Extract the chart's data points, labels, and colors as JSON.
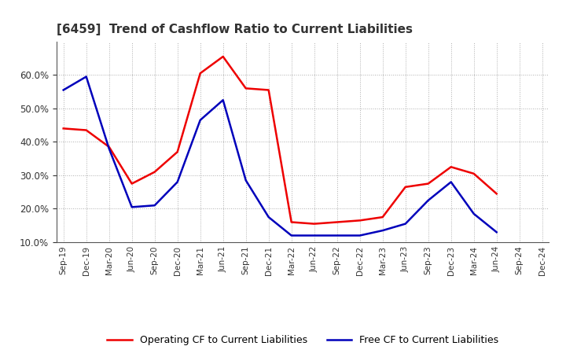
{
  "title": "[6459]  Trend of Cashflow Ratio to Current Liabilities",
  "x_labels": [
    "Sep-19",
    "Dec-19",
    "Mar-20",
    "Jun-20",
    "Sep-20",
    "Dec-20",
    "Mar-21",
    "Jun-21",
    "Sep-21",
    "Dec-21",
    "Mar-22",
    "Jun-22",
    "Sep-22",
    "Dec-22",
    "Mar-23",
    "Jun-23",
    "Sep-23",
    "Dec-23",
    "Mar-24",
    "Jun-24",
    "Sep-24",
    "Dec-24"
  ],
  "operating_cf": [
    0.44,
    0.435,
    0.385,
    0.275,
    0.31,
    0.37,
    0.605,
    0.655,
    0.56,
    0.555,
    0.16,
    0.155,
    0.16,
    0.165,
    0.175,
    0.265,
    0.275,
    0.325,
    0.305,
    0.245,
    null,
    null
  ],
  "free_cf": [
    0.555,
    0.595,
    0.38,
    0.205,
    0.21,
    0.28,
    0.465,
    0.525,
    0.285,
    0.175,
    0.12,
    0.12,
    0.12,
    0.12,
    0.135,
    0.155,
    0.225,
    0.28,
    0.185,
    0.13,
    null,
    null
  ],
  "operating_color": "#EE0000",
  "free_color": "#0000BB",
  "ylim": [
    0.1,
    0.7
  ],
  "yticks": [
    0.1,
    0.2,
    0.3,
    0.4,
    0.5,
    0.6
  ],
  "background_color": "#FFFFFF",
  "grid_color": "#999999",
  "legend_op": "Operating CF to Current Liabilities",
  "legend_free": "Free CF to Current Liabilities",
  "title_color": "#333333"
}
